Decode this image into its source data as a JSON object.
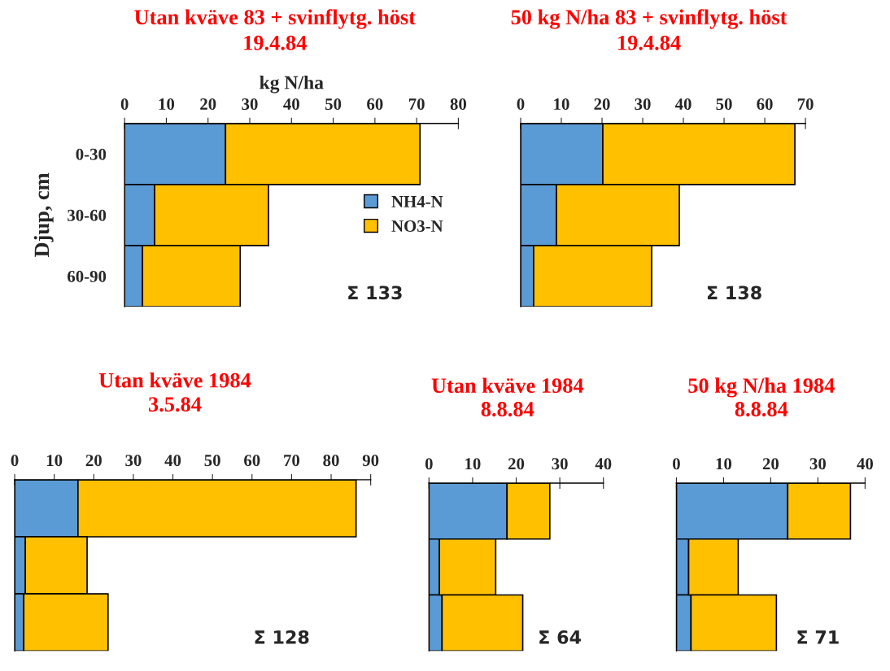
{
  "chart_data": [
    {
      "type": "bar",
      "orientation": "horizontal",
      "stacked": true,
      "title": "Utan kväve 83 + svinflytg. höst",
      "subtitle": "19.4.84",
      "xlabel": "kg N/ha",
      "ylabel": "Djup, cm",
      "categories": [
        "0-30",
        "30-60",
        "60-90"
      ],
      "xlim": [
        0,
        80
      ],
      "xticks": [
        0,
        10,
        20,
        30,
        40,
        50,
        60,
        70,
        80
      ],
      "grid": false,
      "legend": "center right",
      "annotations": [
        "Σ 133"
      ],
      "series": [
        {
          "name": "NH4-N",
          "color": "#5b9bd5",
          "values": [
            24.2,
            7.2,
            4.3
          ]
        },
        {
          "name": "NO3-N",
          "color": "#ffc000",
          "values": [
            46.6,
            27.3,
            23.4
          ]
        }
      ]
    },
    {
      "type": "bar",
      "orientation": "horizontal",
      "stacked": true,
      "title": "50 kg N/ha 83 + svinflytg. höst",
      "subtitle": "19.4.84",
      "categories": [
        null,
        null,
        null
      ],
      "xlim": [
        0,
        70
      ],
      "xticks": [
        0,
        10,
        20,
        30,
        40,
        50,
        60,
        70
      ],
      "grid": false,
      "annotations": [
        "Σ 138"
      ],
      "series": [
        {
          "color": "#5b9bd5",
          "values": [
            20.2,
            8.8,
            3.2
          ]
        },
        {
          "color": "#ffc000",
          "values": [
            47.2,
            30.2,
            29.0
          ]
        }
      ]
    },
    {
      "type": "bar",
      "orientation": "horizontal",
      "stacked": true,
      "title": "Utan kväve 1984",
      "subtitle": "3.5.84",
      "categories": [
        null,
        null,
        null
      ],
      "xlim": [
        0,
        90
      ],
      "xticks": [
        0,
        10,
        20,
        30,
        40,
        50,
        60,
        70,
        80,
        90
      ],
      "grid": false,
      "annotations": [
        "Σ 128"
      ],
      "series": [
        {
          "color": "#5b9bd5",
          "values": [
            16.0,
            2.7,
            2.3
          ]
        },
        {
          "color": "#ffc000",
          "values": [
            70.3,
            15.6,
            21.3
          ]
        }
      ]
    },
    {
      "type": "bar",
      "orientation": "horizontal",
      "stacked": true,
      "title": "Utan kväve 1984",
      "subtitle": "8.8.84",
      "categories": [
        null,
        null,
        null
      ],
      "xlim": [
        0,
        40
      ],
      "xticks": [
        0,
        10,
        20,
        30,
        40
      ],
      "grid": false,
      "annotations": [
        "Σ 64"
      ],
      "series": [
        {
          "color": "#5b9bd5",
          "values": [
            17.9,
            2.4,
            3.0
          ]
        },
        {
          "color": "#ffc000",
          "values": [
            9.8,
            12.9,
            18.5
          ]
        }
      ]
    },
    {
      "type": "bar",
      "orientation": "horizontal",
      "stacked": true,
      "title": "50 kg N/ha 1984",
      "subtitle": "8.8.84",
      "categories": [
        null,
        null,
        null
      ],
      "xlim": [
        0,
        40
      ],
      "xticks": [
        0,
        10,
        20,
        30,
        40
      ],
      "grid": false,
      "annotations": [
        "Σ 71"
      ],
      "series": [
        {
          "color": "#5b9bd5",
          "values": [
            23.6,
            2.6,
            3.1
          ]
        },
        {
          "color": "#ffc000",
          "values": [
            13.3,
            10.5,
            18.1
          ]
        }
      ]
    }
  ]
}
